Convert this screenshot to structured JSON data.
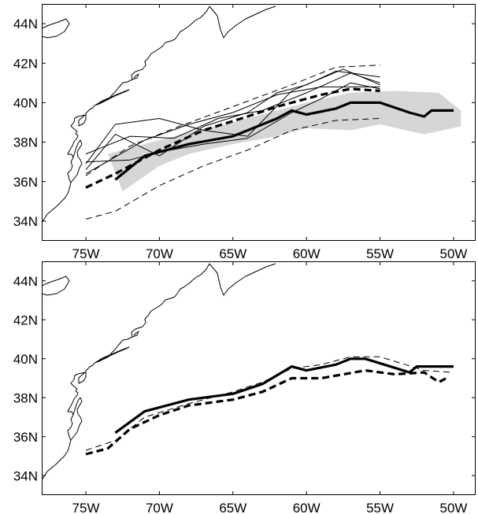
{
  "panels": [
    {
      "id": "top",
      "lon_range": [
        -78,
        -48.5
      ],
      "lat_range": [
        33,
        45
      ],
      "x_ticks": [
        {
          "lon": -75,
          "label": "75W"
        },
        {
          "lon": -70,
          "label": "70W"
        },
        {
          "lon": -65,
          "label": "65W"
        },
        {
          "lon": -60,
          "label": "60W"
        },
        {
          "lon": -55,
          "label": "55W"
        },
        {
          "lon": -50,
          "label": "50W"
        }
      ],
      "y_ticks": [
        {
          "lat": 44,
          "label": "44N"
        },
        {
          "lat": 42,
          "label": "42N"
        },
        {
          "lat": 40,
          "label": "40N"
        },
        {
          "lat": 38,
          "label": "38N"
        },
        {
          "lat": 36,
          "label": "36N"
        },
        {
          "lat": 34,
          "label": "34N"
        }
      ],
      "shaded_band": {
        "color": "#d6d6d6",
        "upper": [
          [
            -73.5,
            37.4
          ],
          [
            -71,
            37.9
          ],
          [
            -68,
            38.5
          ],
          [
            -65,
            39.0
          ],
          [
            -62,
            39.6
          ],
          [
            -60,
            40.0
          ],
          [
            -57,
            40.5
          ],
          [
            -54,
            40.6
          ],
          [
            -51,
            40.5
          ],
          [
            -49.5,
            39.6
          ]
        ],
        "lower": [
          [
            -49.5,
            38.8
          ],
          [
            -52,
            38.4
          ],
          [
            -55,
            38.9
          ],
          [
            -57,
            38.6
          ],
          [
            -60,
            38.7
          ],
          [
            -62,
            38.3
          ],
          [
            -65,
            37.9
          ],
          [
            -68,
            37.4
          ],
          [
            -70,
            36.8
          ],
          [
            -72.5,
            35.5
          ]
        ]
      },
      "lines": [
        {
          "name": "mean-path-solid",
          "style": "solid-thick",
          "points": [
            [
              -73,
              36.1
            ],
            [
              -71,
              37.3
            ],
            [
              -68,
              37.9
            ],
            [
              -65,
              38.3
            ],
            [
              -62,
              39.2
            ],
            [
              -61,
              39.6
            ],
            [
              -60,
              39.4
            ],
            [
              -58,
              39.7
            ],
            [
              -57,
              40.0
            ],
            [
              -55,
              40.0
            ],
            [
              -53,
              39.5
            ],
            [
              -52,
              39.3
            ],
            [
              -51.5,
              39.6
            ],
            [
              -50,
              39.6
            ]
          ]
        },
        {
          "name": "mean-path-dashed",
          "style": "dashed-thick",
          "points": [
            [
              -75,
              35.7
            ],
            [
              -73,
              36.4
            ],
            [
              -70,
              37.6
            ],
            [
              -67,
              38.6
            ],
            [
              -64,
              39.3
            ],
            [
              -62,
              39.8
            ],
            [
              -59,
              40.4
            ],
            [
              -57,
              40.7
            ],
            [
              -55,
              40.6
            ]
          ]
        },
        {
          "name": "envelope-upper",
          "style": "dashed-thin",
          "points": [
            [
              -75,
              36.3
            ],
            [
              -72,
              37.8
            ],
            [
              -69,
              38.7
            ],
            [
              -65,
              39.8
            ],
            [
              -61,
              40.9
            ],
            [
              -58,
              41.8
            ],
            [
              -55,
              41.9
            ]
          ]
        },
        {
          "name": "envelope-lower",
          "style": "dashed-thin",
          "points": [
            [
              -75,
              34.1
            ],
            [
              -73,
              34.5
            ],
            [
              -70,
              35.8
            ],
            [
              -67,
              36.8
            ],
            [
              -64,
              37.6
            ],
            [
              -61,
              38.6
            ],
            [
              -58,
              39.1
            ],
            [
              -55,
              39.2
            ]
          ]
        },
        {
          "name": "individual-path-1",
          "style": "solid-thin",
          "points": [
            [
              -75,
              36.6
            ],
            [
              -73,
              38.4
            ],
            [
              -70,
              37.3
            ],
            [
              -67,
              38.8
            ],
            [
              -64,
              39.5
            ],
            [
              -62,
              40.5
            ],
            [
              -60,
              40.9
            ],
            [
              -58,
              41.6
            ],
            [
              -55,
              41.3
            ]
          ]
        },
        {
          "name": "individual-path-2",
          "style": "solid-thin",
          "points": [
            [
              -75,
              36.9
            ],
            [
              -73,
              38.9
            ],
            [
              -70,
              39.2
            ],
            [
              -67,
              38.6
            ],
            [
              -64,
              38.3
            ],
            [
              -61,
              40.6
            ],
            [
              -57.5,
              41.7
            ],
            [
              -55,
              40.9
            ]
          ]
        },
        {
          "name": "individual-path-3",
          "style": "solid-thin",
          "points": [
            [
              -75,
              37.4
            ],
            [
              -72,
              38.3
            ],
            [
              -69,
              38.2
            ],
            [
              -66,
              39.2
            ],
            [
              -63,
              39.6
            ],
            [
              -60,
              40.5
            ],
            [
              -57,
              41.5
            ],
            [
              -55,
              41.0
            ]
          ]
        },
        {
          "name": "individual-path-4",
          "style": "solid-thin",
          "points": [
            [
              -75,
              36.4
            ],
            [
              -71,
              38.1
            ],
            [
              -68,
              38.9
            ],
            [
              -65,
              39.5
            ],
            [
              -62,
              40.4
            ],
            [
              -59,
              40.8
            ],
            [
              -55,
              40.8
            ]
          ]
        },
        {
          "name": "individual-path-5",
          "style": "solid-thin",
          "points": [
            [
              -75,
              37.0
            ],
            [
              -72,
              37.1
            ],
            [
              -70,
              37.5
            ],
            [
              -67,
              37.9
            ],
            [
              -64,
              38.2
            ],
            [
              -61,
              39.5
            ],
            [
              -59,
              40.2
            ],
            [
              -57,
              41.0
            ],
            [
              -55,
              40.7
            ]
          ]
        }
      ]
    },
    {
      "id": "bottom",
      "lon_range": [
        -78,
        -48.5
      ],
      "lat_range": [
        33,
        45
      ],
      "x_ticks": [
        {
          "lon": -75,
          "label": "75W"
        },
        {
          "lon": -70,
          "label": "70W"
        },
        {
          "lon": -65,
          "label": "65W"
        },
        {
          "lon": -60,
          "label": "60W"
        },
        {
          "lon": -55,
          "label": "55W"
        },
        {
          "lon": -50,
          "label": "50W"
        }
      ],
      "y_ticks": [
        {
          "lat": 44,
          "label": "44N"
        },
        {
          "lat": 42,
          "label": "42N"
        },
        {
          "lat": 40,
          "label": "40N"
        },
        {
          "lat": 38,
          "label": "38N"
        },
        {
          "lat": 36,
          "label": "36N"
        },
        {
          "lat": 34,
          "label": "34N"
        }
      ],
      "lines": [
        {
          "name": "mean-path-solid",
          "style": "solid-thick",
          "points": [
            [
              -73,
              36.2
            ],
            [
              -71,
              37.3
            ],
            [
              -68,
              37.9
            ],
            [
              -65,
              38.2
            ],
            [
              -63,
              38.7
            ],
            [
              -61,
              39.6
            ],
            [
              -60,
              39.4
            ],
            [
              -58,
              39.7
            ],
            [
              -57,
              40.0
            ],
            [
              -56,
              40.0
            ],
            [
              -53,
              39.3
            ],
            [
              -52.5,
              39.6
            ],
            [
              -50,
              39.6
            ]
          ]
        },
        {
          "name": "mean-path-dashed",
          "style": "dashed-thick",
          "points": [
            [
              -75,
              35.1
            ],
            [
              -73.5,
              35.4
            ],
            [
              -72,
              36.4
            ],
            [
              -70,
              37.1
            ],
            [
              -68,
              37.6
            ],
            [
              -65,
              37.9
            ],
            [
              -63,
              38.3
            ],
            [
              -61,
              39.0
            ],
            [
              -59,
              39.0
            ],
            [
              -56,
              39.4
            ],
            [
              -54,
              39.2
            ],
            [
              -52,
              39.3
            ],
            [
              -51,
              38.8
            ],
            [
              -50.5,
              39.0
            ]
          ]
        },
        {
          "name": "reference-path-thin-dashed",
          "style": "dashed-thin",
          "points": [
            [
              -75,
              35.3
            ],
            [
              -73,
              35.8
            ],
            [
              -71,
              37.0
            ],
            [
              -68,
              37.7
            ],
            [
              -65,
              38.3
            ],
            [
              -63,
              38.8
            ],
            [
              -61,
              39.5
            ],
            [
              -59,
              39.7
            ],
            [
              -57,
              40.1
            ],
            [
              -55,
              40.1
            ],
            [
              -52,
              39.4
            ],
            [
              -50,
              39.3
            ]
          ]
        }
      ]
    }
  ]
}
